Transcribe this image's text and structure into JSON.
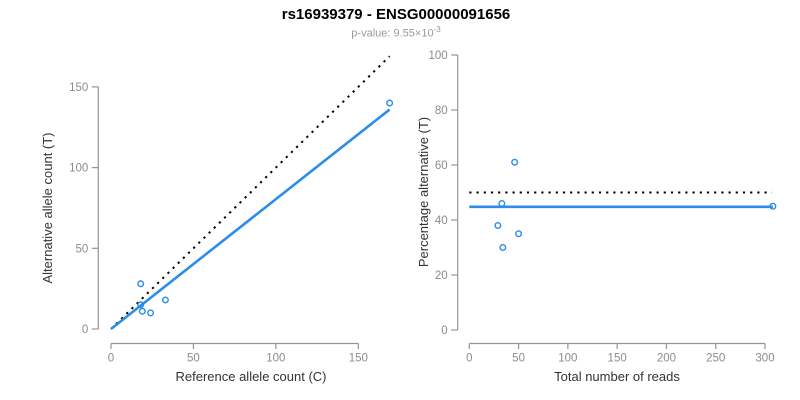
{
  "header": {
    "title": "rs16939379 - ENSG00000091656",
    "subtitle_base": "p-value: 9.55×10",
    "subtitle_exponent": "-3"
  },
  "colors": {
    "point_and_fit_blue": "#2b8cea",
    "expected_line_black": "#000000",
    "axis_gray": "#959595",
    "tick_label_gray": "#8c8c8c",
    "axis_title_dark": "#333333",
    "subtitle_gray": "#999999",
    "background": "#ffffff"
  },
  "chart_data": [
    {
      "type": "scatter",
      "panel": "left",
      "xlabel": "Reference allele count (C)",
      "ylabel": "Alternative allele count (T)",
      "xlim": [
        0,
        170
      ],
      "ylim": [
        0,
        170
      ],
      "xticks": [
        0,
        50,
        100,
        150
      ],
      "yticks": [
        0,
        50,
        100,
        150
      ],
      "grid": false,
      "points": [
        [
          18,
          28
        ],
        [
          18,
          15
        ],
        [
          19,
          11
        ],
        [
          24,
          10
        ],
        [
          33,
          18
        ],
        [
          169,
          140
        ]
      ],
      "lines": [
        {
          "name": "expected-identity-line",
          "style": "dotted",
          "color": "black",
          "x1": 0,
          "y1": 0,
          "x2": 169,
          "y2": 169
        },
        {
          "name": "fitted-line",
          "style": "solid",
          "color": "blue",
          "x1": 0,
          "y1": 0,
          "x2": 169,
          "y2": 136
        }
      ]
    },
    {
      "type": "scatter",
      "panel": "right",
      "xlabel": "Total number of reads",
      "ylabel": "Percentage alternative (T)",
      "xlim": [
        0,
        310
      ],
      "ylim": [
        0,
        100
      ],
      "xticks": [
        0,
        50,
        100,
        150,
        200,
        250,
        300
      ],
      "yticks": [
        0,
        20,
        40,
        60,
        80,
        100
      ],
      "grid": false,
      "points": [
        [
          46,
          61
        ],
        [
          33,
          46
        ],
        [
          29,
          38
        ],
        [
          34,
          30
        ],
        [
          50,
          35
        ],
        [
          308,
          45
        ]
      ],
      "lines": [
        {
          "name": "expected-50pct-line",
          "style": "dotted",
          "color": "black",
          "x1": 0,
          "y1": 50,
          "x2": 307,
          "y2": 50
        },
        {
          "name": "fitted-pct-line",
          "style": "solid",
          "color": "blue",
          "x1": 0,
          "y1": 44.8,
          "x2": 308,
          "y2": 44.8
        }
      ]
    }
  ]
}
